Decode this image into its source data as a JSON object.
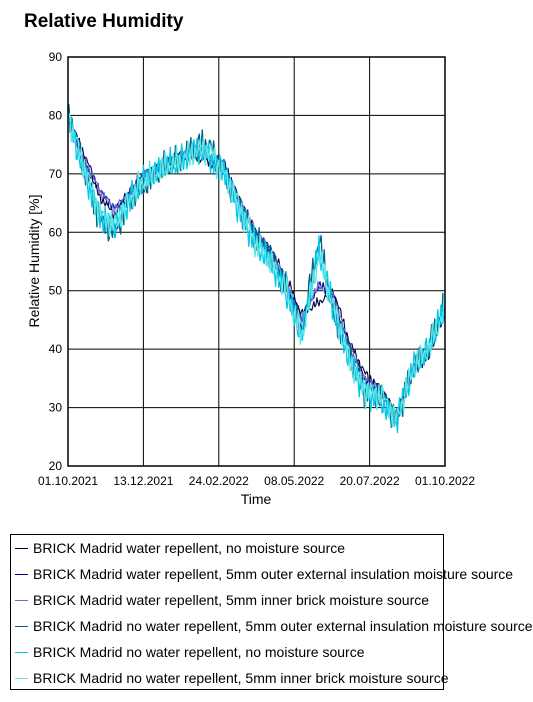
{
  "chart_data": {
    "type": "line",
    "title": "Relative Humidity",
    "xlabel": "Time",
    "ylabel": "Relative Humidity [%]",
    "xlim": [
      "01.10.2021",
      "01.10.2022"
    ],
    "ylim": [
      20,
      90
    ],
    "yticks": [
      20,
      30,
      40,
      50,
      60,
      70,
      80,
      90
    ],
    "xticks": [
      "01.10.2021",
      "13.12.2021",
      "24.02.2022",
      "08.05.2022",
      "20.07.2022",
      "01.10.2022"
    ],
    "grid": true,
    "legend_position": "bottom",
    "x_dates": [
      "01.10.2021",
      "15.10.2021",
      "01.11.2021",
      "15.11.2021",
      "01.12.2021",
      "15.12.2021",
      "01.01.2022",
      "15.01.2022",
      "01.02.2022",
      "15.02.2022",
      "01.03.2022",
      "15.03.2022",
      "01.04.2022",
      "15.04.2022",
      "01.05.2022",
      "15.05.2022",
      "01.06.2022",
      "15.06.2022",
      "01.07.2022",
      "15.07.2022",
      "01.08.2022",
      "15.08.2022",
      "01.09.2022",
      "15.09.2022",
      "01.10.2022"
    ],
    "series": [
      {
        "name": "BRICK Madrid water repellent, no moisture source",
        "color": "#000033",
        "values": [
          79,
          73,
          66,
          63,
          67,
          70,
          71,
          73,
          73,
          72,
          71,
          66,
          60,
          57,
          52,
          46,
          48,
          50,
          41,
          36,
          33,
          29,
          36,
          39,
          46
        ]
      },
      {
        "name": "BRICK Madrid water repellent, 5mm outer external insulation moisture source",
        "color": "#000080",
        "values": [
          80,
          74,
          67,
          64,
          67,
          70,
          71,
          73,
          74,
          73,
          72,
          66,
          59,
          57,
          51,
          45,
          51,
          49,
          40,
          35,
          33,
          28,
          37,
          39,
          47
        ]
      },
      {
        "name": "BRICK Madrid water repellent, 5mm inner brick moisture source",
        "color": "#6a6ad8",
        "values": [
          79,
          73,
          67,
          64,
          67,
          70,
          71,
          73,
          74,
          73,
          71,
          66,
          60,
          57,
          51,
          45,
          51,
          49,
          40,
          35,
          33,
          28,
          37,
          39,
          47
        ]
      },
      {
        "name": "BRICK Madrid no water repellent, 5mm outer external insulation moisture source",
        "color": "#00608a",
        "values": [
          81,
          72,
          62,
          60,
          66,
          68,
          71,
          72,
          75,
          75,
          70,
          65,
          59,
          56,
          50,
          43,
          59,
          46,
          39,
          33,
          32,
          28,
          37,
          40,
          48
        ]
      },
      {
        "name": "BRICK Madrid no water repellent, no moisture source",
        "color": "#00c8e8",
        "values": [
          80,
          71,
          63,
          61,
          66,
          69,
          71,
          72,
          74,
          73,
          71,
          64,
          58,
          55,
          49,
          42,
          57,
          47,
          38,
          33,
          31,
          28,
          37,
          40,
          47
        ]
      },
      {
        "name": "BRICK Madrid no water repellent, 5mm inner brick moisture source",
        "color": "#5ee6e6",
        "values": [
          80,
          72,
          63,
          61,
          66,
          69,
          71,
          72,
          74,
          74,
          70,
          65,
          58,
          55,
          50,
          42,
          56,
          47,
          38,
          33,
          32,
          28,
          37,
          40,
          47
        ]
      }
    ]
  }
}
